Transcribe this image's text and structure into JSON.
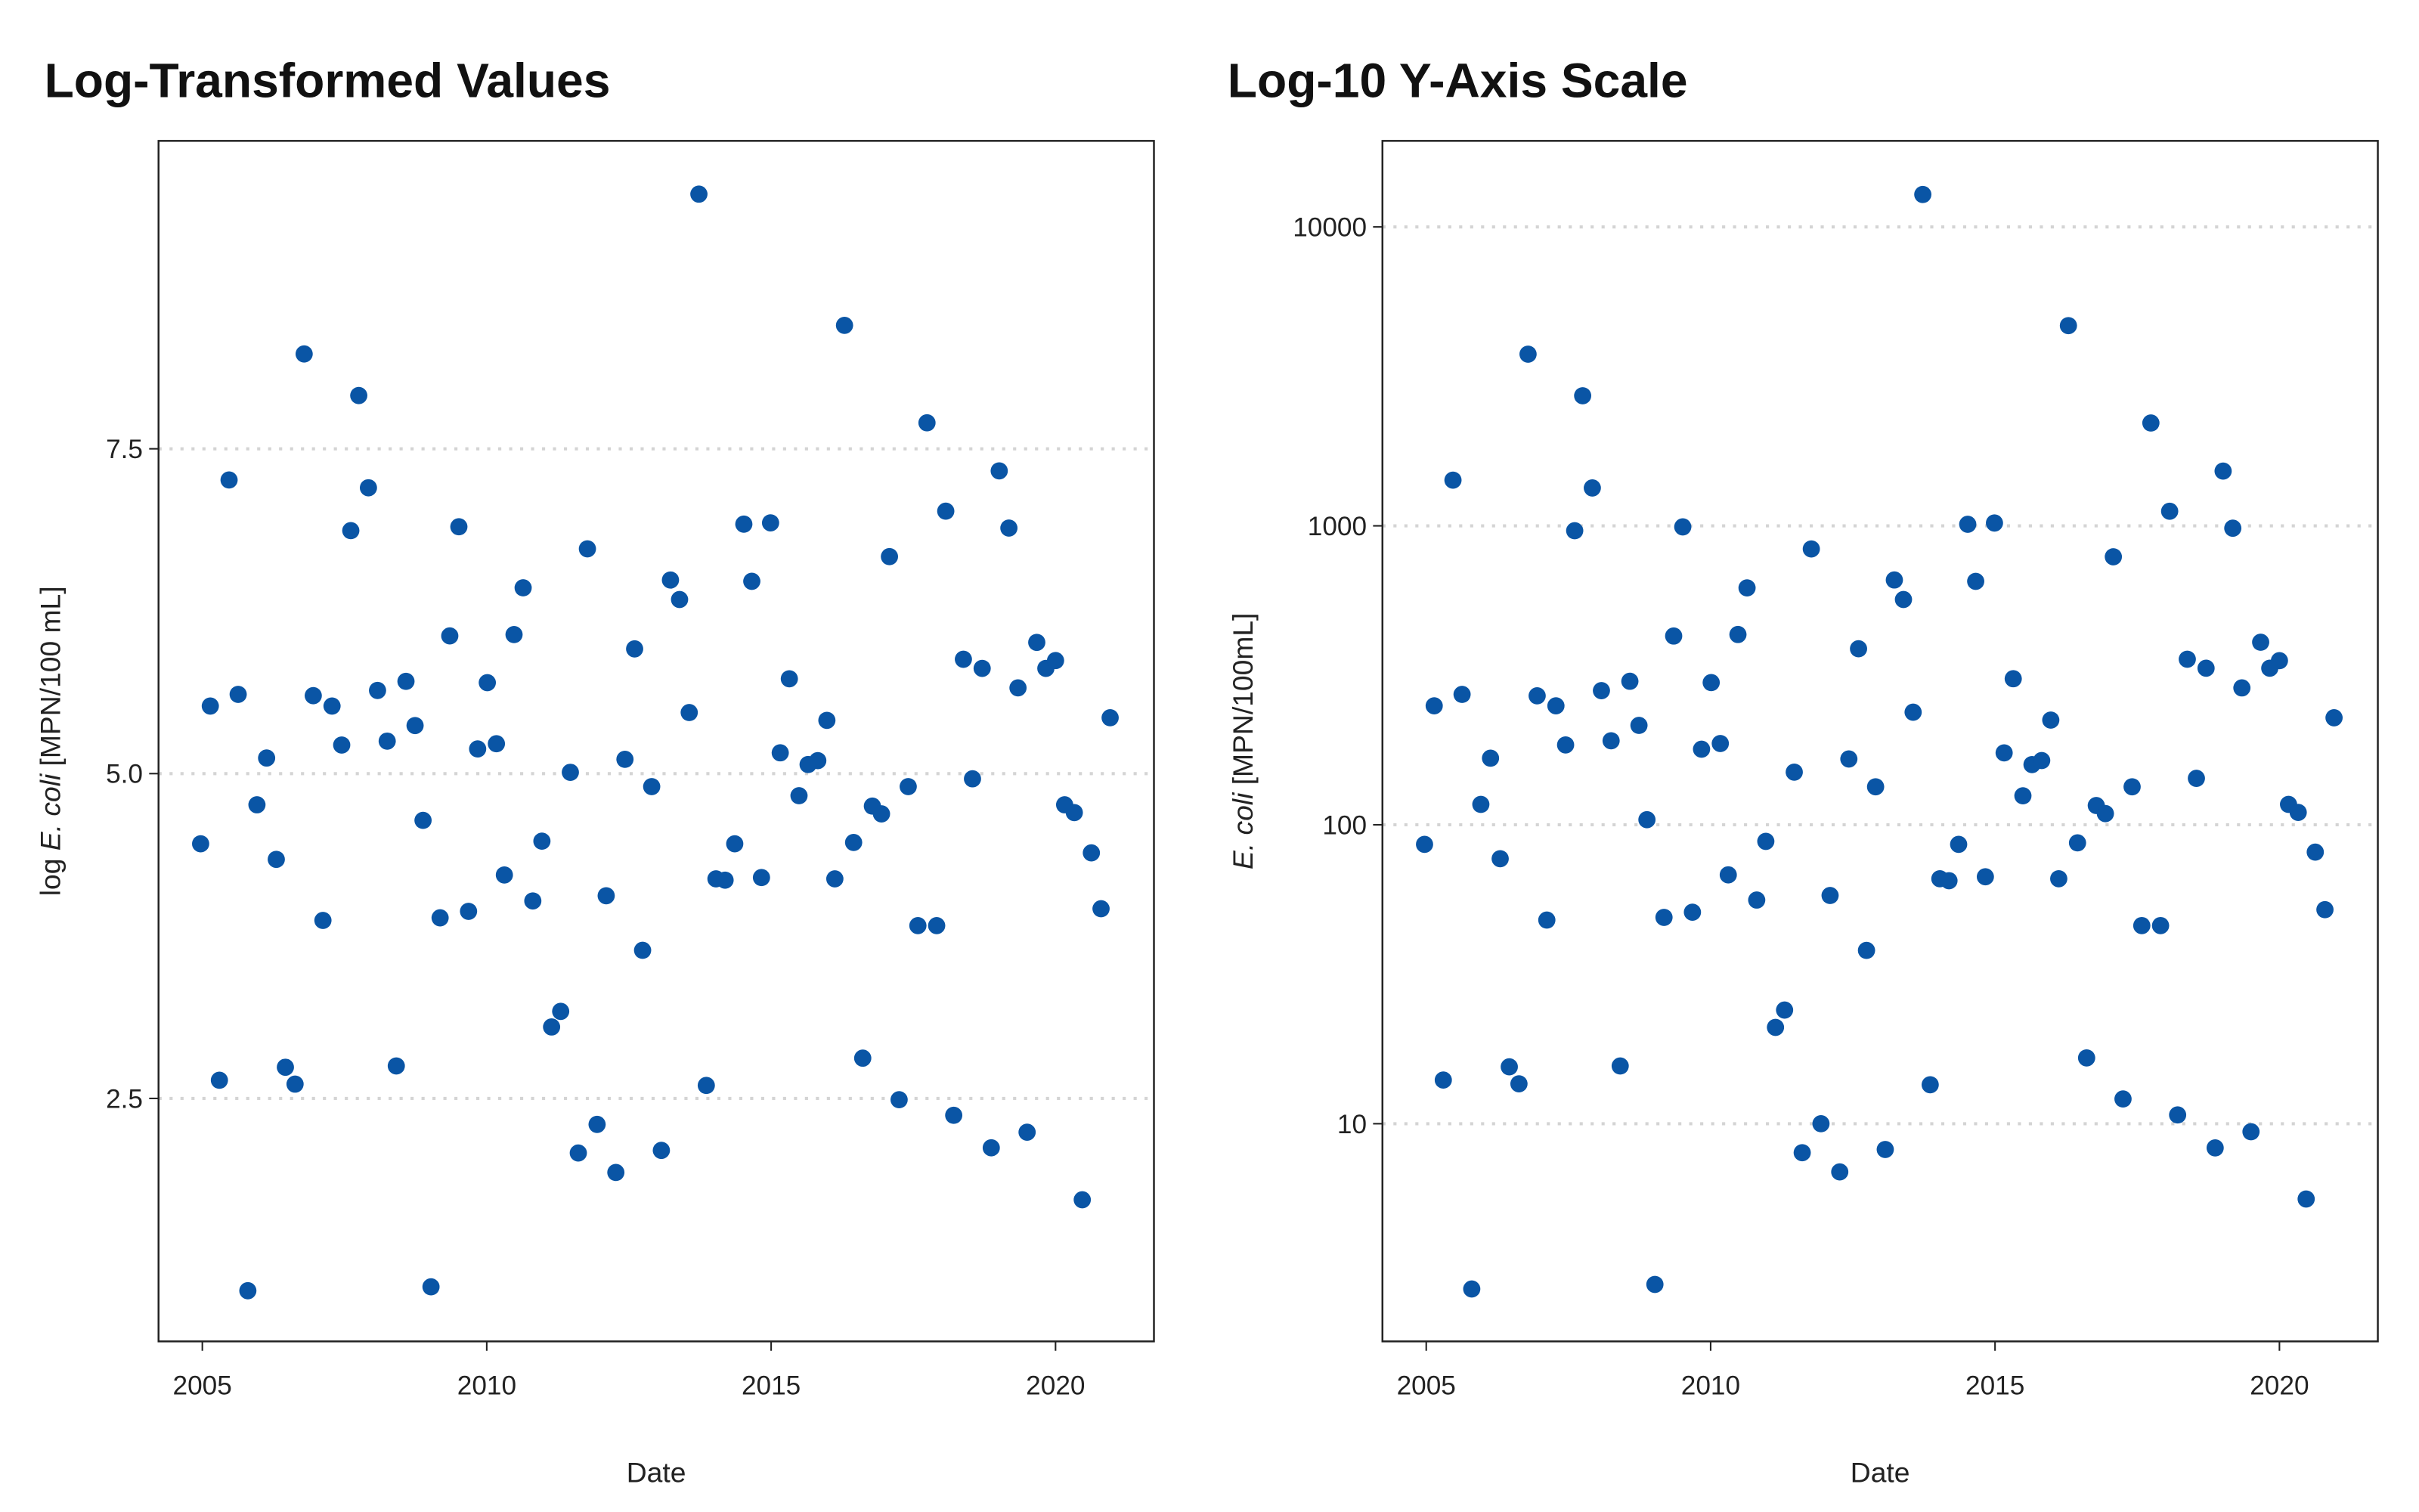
{
  "chart_data": [
    {
      "type": "scatter",
      "title": "Log-Transformed Values",
      "xlabel": "Date",
      "ylabel": [
        "log ",
        "E. coli",
        " [MPN/100 mL]"
      ],
      "ylabel_italic": [
        false,
        true,
        false
      ],
      "color": "#0a55a5",
      "grid": "y",
      "log_y": false,
      "xlim": [
        2004.23,
        2021.73
      ],
      "ylim": [
        0.63,
        9.87
      ],
      "xticks": [
        2005,
        2010,
        2015,
        2020
      ],
      "yticks": [
        2.5,
        {
          "value": 5,
          "label": "5.0"
        },
        7.5
      ],
      "x": [
        2004.97,
        2005.14,
        2005.3,
        2005.47,
        2005.63,
        2005.8,
        2005.96,
        2006.13,
        2006.3,
        2006.46,
        2006.63,
        2006.79,
        2006.95,
        2007.12,
        2007.28,
        2007.45,
        2007.61,
        2007.75,
        2007.92,
        2008.08,
        2008.25,
        2008.41,
        2008.58,
        2008.74,
        2008.88,
        2009.02,
        2009.18,
        2009.35,
        2009.51,
        2009.68,
        2009.84,
        2010.01,
        2010.17,
        2010.31,
        2010.48,
        2010.64,
        2010.81,
        2010.97,
        2011.14,
        2011.3,
        2011.47,
        2011.61,
        2011.77,
        2011.94,
        2012.1,
        2012.27,
        2012.43,
        2012.6,
        2012.74,
        2012.9,
        2013.07,
        2013.23,
        2013.39,
        2013.56,
        2013.73,
        2013.86,
        2014.03,
        2014.19,
        2014.36,
        2014.52,
        2014.66,
        2014.83,
        2014.99,
        2015.16,
        2015.32,
        2015.49,
        2015.65,
        2015.82,
        2015.98,
        2016.12,
        2016.29,
        2016.45,
        2016.61,
        2016.78,
        2016.94,
        2017.08,
        2017.25,
        2017.41,
        2017.58,
        2017.74,
        2017.91,
        2018.07,
        2018.21,
        2018.38,
        2018.54,
        2018.71,
        2018.87,
        2019.01,
        2019.18,
        2019.34,
        2019.5,
        2019.67,
        2019.83,
        2020.0,
        2020.16,
        2020.33,
        2020.47,
        2020.63,
        2020.8,
        2020.96
      ],
      "values": [
        4.46,
        5.52,
        2.64,
        7.26,
        5.61,
        1.02,
        4.76,
        5.12,
        4.34,
        2.74,
        2.61,
        8.23,
        5.6,
        3.87,
        5.52,
        5.22,
        6.87,
        7.91,
        7.2,
        5.64,
        5.25,
        2.75,
        5.71,
        5.37,
        4.64,
        1.05,
        3.89,
        6.06,
        6.9,
        3.94,
        5.19,
        5.7,
        5.23,
        4.22,
        6.07,
        6.43,
        4.02,
        4.48,
        3.05,
        3.17,
        5.01,
        2.08,
        6.73,
        2.3,
        4.06,
        1.93,
        5.11,
        5.96,
        3.64,
        4.9,
        2.1,
        6.49,
        6.34,
        5.47,
        9.46,
        2.6,
        4.19,
        4.18,
        4.46,
        6.92,
        6.48,
        4.2,
        6.93,
        5.16,
        5.73,
        4.83,
        5.07,
        5.1,
        5.41,
        4.19,
        8.45,
        4.47,
        2.81,
        4.75,
        4.69,
        6.67,
        2.49,
        4.9,
        3.83,
        7.7,
        3.83,
        7.02,
        2.37,
        5.88,
        4.96,
        5.81,
        2.12,
        7.33,
        6.89,
        5.66,
        2.24,
        6.01,
        5.81,
        5.87,
        4.76,
        4.7,
        1.72,
        4.39,
        3.96,
        5.43
      ]
    },
    {
      "type": "scatter",
      "title": "Log-10 Y-Axis Scale",
      "xlabel": "Date",
      "ylabel": [
        "E. coli",
        " [MPN/100mL]"
      ],
      "ylabel_italic": [
        true,
        false
      ],
      "color": "#0a55a5",
      "grid": "y",
      "log_y": true,
      "xlim": [
        2004.23,
        2021.73
      ],
      "ylim": [
        1.87,
        19400
      ],
      "xticks": [
        2005,
        2010,
        2015,
        2020
      ],
      "yticks": [
        10,
        100,
        1000,
        10000
      ],
      "x": [
        2004.97,
        2005.14,
        2005.3,
        2005.47,
        2005.63,
        2005.8,
        2005.96,
        2006.13,
        2006.3,
        2006.46,
        2006.63,
        2006.79,
        2006.95,
        2007.12,
        2007.28,
        2007.45,
        2007.61,
        2007.75,
        2007.92,
        2008.08,
        2008.25,
        2008.41,
        2008.58,
        2008.74,
        2008.88,
        2009.02,
        2009.18,
        2009.35,
        2009.51,
        2009.68,
        2009.84,
        2010.01,
        2010.17,
        2010.31,
        2010.48,
        2010.64,
        2010.81,
        2010.97,
        2011.14,
        2011.3,
        2011.47,
        2011.61,
        2011.77,
        2011.94,
        2012.1,
        2012.27,
        2012.43,
        2012.6,
        2012.74,
        2012.9,
        2013.07,
        2013.23,
        2013.39,
        2013.56,
        2013.73,
        2013.86,
        2014.03,
        2014.19,
        2014.36,
        2014.52,
        2014.66,
        2014.83,
        2014.99,
        2015.16,
        2015.32,
        2015.49,
        2015.65,
        2015.82,
        2015.98,
        2016.12,
        2016.29,
        2016.45,
        2016.61,
        2016.78,
        2016.94,
        2017.08,
        2017.25,
        2017.41,
        2017.58,
        2017.74,
        2017.91,
        2018.07,
        2018.21,
        2018.38,
        2018.54,
        2018.71,
        2018.87,
        2019.01,
        2019.18,
        2019.34,
        2019.5,
        2019.67,
        2019.83,
        2020.0,
        2020.16,
        2020.33,
        2020.47,
        2020.63,
        2020.8,
        2020.96
      ],
      "values": [
        86,
        250,
        14,
        1422,
        273,
        2.8,
        117,
        167,
        77,
        15.5,
        13.6,
        3752,
        270,
        48,
        250,
        185,
        963,
        2724,
        1339,
        281,
        191,
        15.6,
        302,
        215,
        104,
        2.9,
        49,
        428,
        992,
        51,
        179,
        299,
        187,
        68,
        433,
        620,
        56,
        88,
        21,
        24,
        150,
        8.0,
        837,
        10.0,
        58,
        6.9,
        166,
        388,
        38,
        134,
        8.2,
        659,
        567,
        238,
        12836,
        13.5,
        66,
        65,
        86,
        1012,
        652,
        67,
        1022,
        174,
        308,
        125,
        159,
        164,
        224,
        66,
        4675,
        87,
        16.6,
        116,
        109,
        788,
        12.1,
        134,
        46,
        2208,
        46,
        1119,
        10.7,
        358,
        143,
        334,
        8.3,
        1525,
        982,
        287,
        9.4,
        408,
        334,
        354,
        117,
        110,
        5.6,
        81,
        52,
        228
      ]
    }
  ]
}
